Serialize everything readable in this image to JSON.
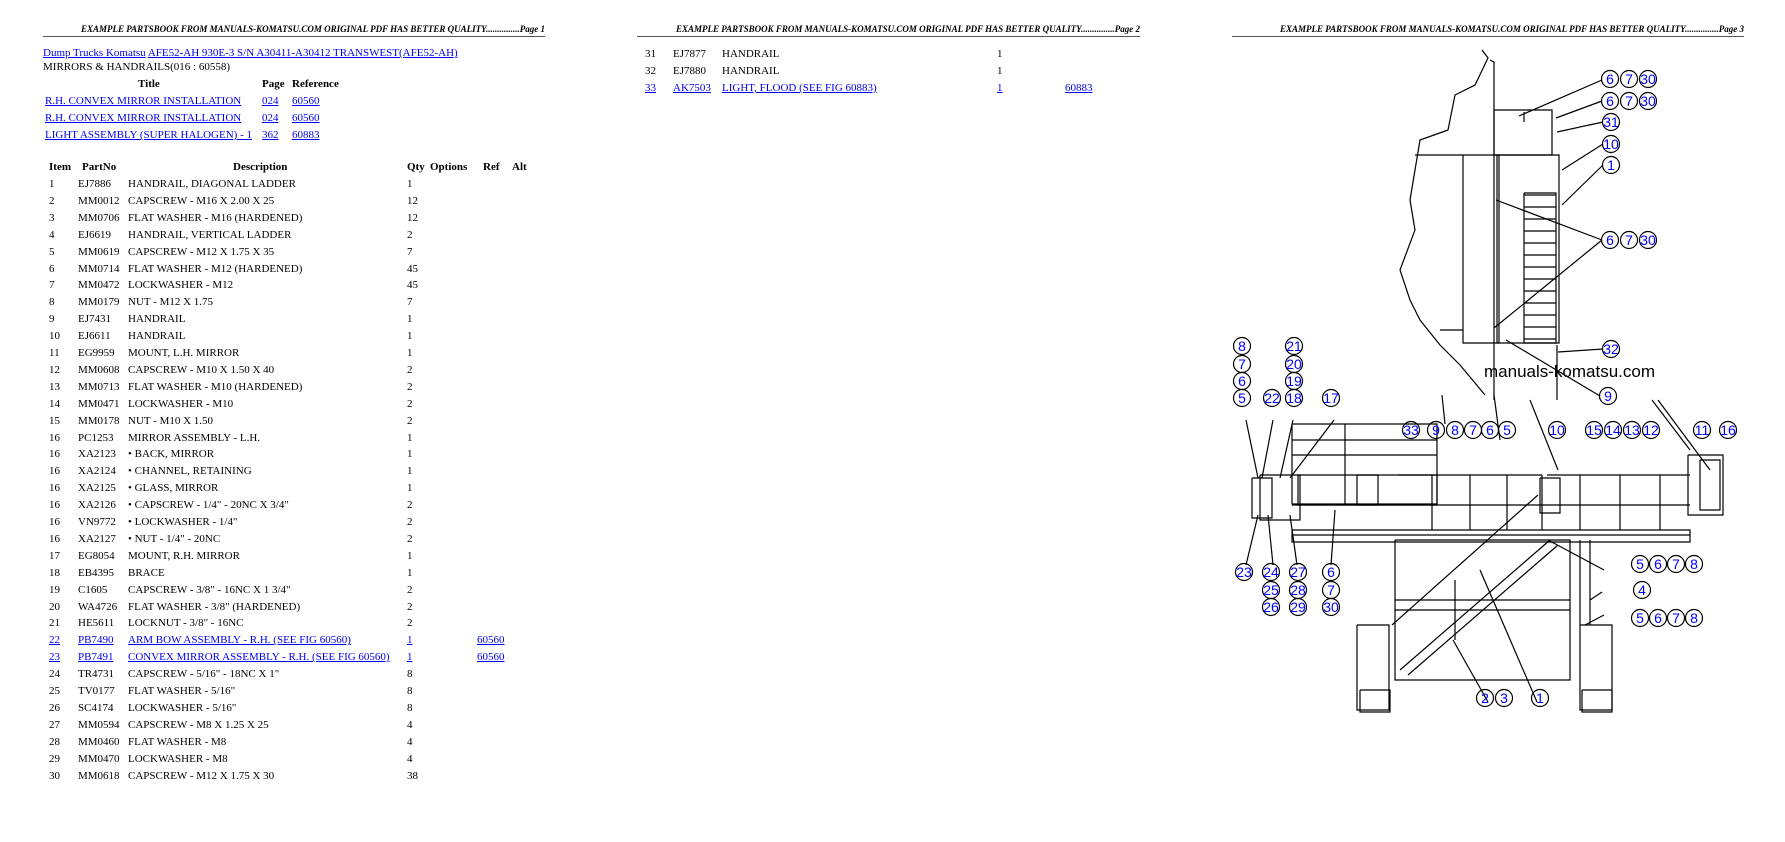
{
  "pages": [
    {
      "header": "EXAMPLE PARTSBOOK FROM MANUALS-KOMATSU.COM ORIGINAL PDF HAS BETTER QUALITY...............Page 1"
    },
    {
      "header": "EXAMPLE PARTSBOOK FROM MANUALS-KOMATSU.COM ORIGINAL PDF HAS BETTER QUALITY...............Page 2"
    },
    {
      "header": "EXAMPLE PARTSBOOK FROM MANUALS-KOMATSU.COM ORIGINAL PDF HAS BETTER QUALITY...............Page 3"
    }
  ],
  "breadcrumb": {
    "root": "Dump Trucks Komatsu",
    "model": "AFE52-AH 930E-3 S/N A30411-A30412 TRANSWEST(AFE52-AH)"
  },
  "section_title": "MIRRORS & HANDRAILS(016 : 60558)",
  "references": {
    "headers": {
      "title": "Title",
      "page": "Page",
      "reference": "Reference"
    },
    "rows": [
      {
        "title": "R.H. CONVEX MIRROR INSTALLATION",
        "page": "024",
        "reference": "60560"
      },
      {
        "title": "R.H. CONVEX MIRROR INSTALLATION",
        "page": "024",
        "reference": "60560"
      },
      {
        "title": "LIGHT ASSEMBLY (SUPER HALOGEN) - 1",
        "page": "362",
        "reference": "60883"
      }
    ]
  },
  "parts": {
    "headers": {
      "item": "Item",
      "partno": "PartNo",
      "description": "Description",
      "qty": "Qty",
      "options": "Options",
      "ref": "Ref",
      "alt": "Alt"
    },
    "rows": [
      {
        "item": "1",
        "partno": "EJ7886",
        "description": "HANDRAIL, DIAGONAL LADDER",
        "qty": "1"
      },
      {
        "item": "2",
        "partno": "MM0012",
        "description": "CAPSCREW - M16 X 2.00 X 25",
        "qty": "12"
      },
      {
        "item": "3",
        "partno": "MM0706",
        "description": "FLAT WASHER - M16 (HARDENED)",
        "qty": "12"
      },
      {
        "item": "4",
        "partno": "EJ6619",
        "description": "HANDRAIL, VERTICAL LADDER",
        "qty": "2"
      },
      {
        "item": "5",
        "partno": "MM0619",
        "description": "CAPSCREW - M12 X 1.75 X 35",
        "qty": "7"
      },
      {
        "item": "6",
        "partno": "MM0714",
        "description": "FLAT WASHER - M12 (HARDENED)",
        "qty": "45"
      },
      {
        "item": "7",
        "partno": "MM0472",
        "description": "LOCKWASHER - M12",
        "qty": "45"
      },
      {
        "item": "8",
        "partno": "MM0179",
        "description": "NUT - M12 X 1.75",
        "qty": "7"
      },
      {
        "item": "9",
        "partno": "EJ7431",
        "description": "HANDRAIL",
        "qty": "1"
      },
      {
        "item": "10",
        "partno": "EJ6611",
        "description": "HANDRAIL",
        "qty": "1"
      },
      {
        "item": "11",
        "partno": "EG9959",
        "description": "MOUNT, L.H. MIRROR",
        "qty": "1"
      },
      {
        "item": "12",
        "partno": "MM0608",
        "description": "CAPSCREW - M10 X 1.50 X 40",
        "qty": "2"
      },
      {
        "item": "13",
        "partno": "MM0713",
        "description": "FLAT WASHER - M10 (HARDENED)",
        "qty": "2"
      },
      {
        "item": "14",
        "partno": "MM0471",
        "description": "LOCKWASHER - M10",
        "qty": "2"
      },
      {
        "item": "15",
        "partno": "MM0178",
        "description": "NUT - M10 X 1.50",
        "qty": "2"
      },
      {
        "item": "16",
        "partno": "PC1253",
        "description": "MIRROR ASSEMBLY - L.H.",
        "qty": "1"
      },
      {
        "item": "16",
        "partno": "XA2123",
        "description": "• BACK, MIRROR",
        "qty": "1"
      },
      {
        "item": "16",
        "partno": "XA2124",
        "description": "• CHANNEL, RETAINING",
        "qty": "1"
      },
      {
        "item": "16",
        "partno": "XA2125",
        "description": "• GLASS, MIRROR",
        "qty": "1"
      },
      {
        "item": "16",
        "partno": "XA2126",
        "description": "• CAPSCREW - 1/4\" - 20NC X 3/4\"",
        "qty": "2"
      },
      {
        "item": "16",
        "partno": "VN9772",
        "description": "• LOCKWASHER - 1/4\"",
        "qty": "2"
      },
      {
        "item": "16",
        "partno": "XA2127",
        "description": "• NUT - 1/4\" - 20NC",
        "qty": "2"
      },
      {
        "item": "17",
        "partno": "EG8054",
        "description": "MOUNT, R.H. MIRROR",
        "qty": "1"
      },
      {
        "item": "18",
        "partno": "EB4395",
        "description": "BRACE",
        "qty": "1"
      },
      {
        "item": "19",
        "partno": "C1605",
        "description": "CAPSCREW - 3/8\" - 16NC X 1 3/4\"",
        "qty": "2"
      },
      {
        "item": "20",
        "partno": "WA4726",
        "description": "FLAT WASHER - 3/8\" (HARDENED)",
        "qty": "2"
      },
      {
        "item": "21",
        "partno": "HE5611",
        "description": "LOCKNUT - 3/8\" - 16NC",
        "qty": "2"
      },
      {
        "item": "22",
        "partno": "PB7490",
        "description": "ARM BOW ASSEMBLY - R.H. (SEE FIG 60560)",
        "qty": "1",
        "ref": "60560",
        "link": true
      },
      {
        "item": "23",
        "partno": "PB7491",
        "description": "CONVEX MIRROR ASSEMBLY - R.H. (SEE FIG 60560)",
        "qty": "1",
        "ref": "60560",
        "link": true
      },
      {
        "item": "24",
        "partno": "TR4731",
        "description": "CAPSCREW - 5/16\" - 18NC X 1\"",
        "qty": "8"
      },
      {
        "item": "25",
        "partno": "TV0177",
        "description": "FLAT WASHER - 5/16\"",
        "qty": "8"
      },
      {
        "item": "26",
        "partno": "SC4174",
        "description": "LOCKWASHER - 5/16\"",
        "qty": "8"
      },
      {
        "item": "27",
        "partno": "MM0594",
        "description": "CAPSCREW - M8 X 1.25 X 25",
        "qty": "4"
      },
      {
        "item": "28",
        "partno": "MM0460",
        "description": "FLAT WASHER - M8",
        "qty": "4"
      },
      {
        "item": "29",
        "partno": "MM0470",
        "description": "LOCKWASHER - M8",
        "qty": "4"
      },
      {
        "item": "30",
        "partno": "MM0618",
        "description": "CAPSCREW - M12 X 1.75 X 30",
        "qty": "38"
      }
    ],
    "rows_page2": [
      {
        "item": "31",
        "partno": "EJ7877",
        "description": "HANDRAIL",
        "qty": "1"
      },
      {
        "item": "32",
        "partno": "EJ7880",
        "description": "HANDRAIL",
        "qty": "1"
      },
      {
        "item": "33",
        "partno": "AK7503",
        "description": "LIGHT, FLOOD (SEE FIG 60883)",
        "qty": "1",
        "ref": "60883",
        "link": true
      }
    ]
  },
  "diagram": {
    "watermark": "manuals-komatsu.com",
    "callout_color": "#0000ff",
    "callouts": [
      "6",
      "7",
      "30",
      "6",
      "7",
      "30",
      "31",
      "10",
      "1",
      "6",
      "7",
      "30",
      "32",
      "9",
      "8",
      "7",
      "6",
      "5",
      "22",
      "21",
      "20",
      "19",
      "18",
      "17",
      "33",
      "9",
      "8",
      "7",
      "6",
      "5",
      "10",
      "15",
      "14",
      "13",
      "12",
      "11",
      "16",
      "5",
      "6",
      "7",
      "8",
      "4",
      "5",
      "6",
      "7",
      "8",
      "23",
      "24",
      "27",
      "6",
      "25",
      "28",
      "7",
      "26",
      "29",
      "30",
      "2",
      "3",
      "1"
    ]
  }
}
